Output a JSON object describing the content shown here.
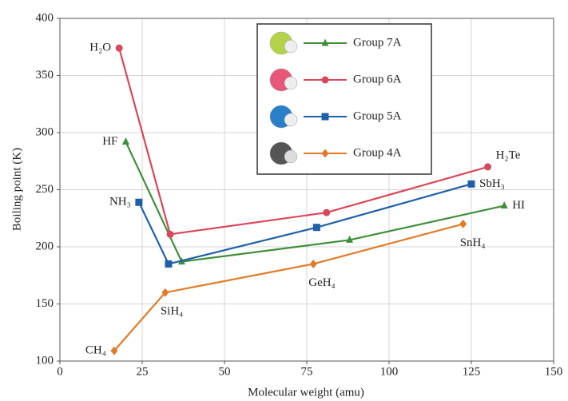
{
  "chart_data": {
    "type": "line",
    "xlabel": "Molecular weight (amu)",
    "ylabel": "Boiling point (K)",
    "xlim": [
      0,
      150
    ],
    "xticks": [
      0,
      25,
      50,
      75,
      100,
      125,
      150
    ],
    "ylim": [
      100,
      400
    ],
    "yticks": [
      100,
      150,
      200,
      250,
      300,
      350,
      400
    ],
    "grid": true,
    "legend": "upper center",
    "series": [
      {
        "name": "Group 7A",
        "color": "#3f8f3a",
        "marker": "triangle",
        "x": [
          20,
          37,
          88,
          135
        ],
        "values": [
          292,
          187,
          206,
          236
        ],
        "point_labels": [
          "HF",
          null,
          null,
          "HI"
        ]
      },
      {
        "name": "Group 6A",
        "color": "#d9475a",
        "marker": "circle",
        "x": [
          18,
          33.5,
          81,
          130
        ],
        "values": [
          374,
          211,
          230,
          270
        ],
        "point_labels": [
          "H₂O",
          null,
          null,
          "H₂Te"
        ]
      },
      {
        "name": "Group 5A",
        "color": "#1f5fa8",
        "marker": "square",
        "x": [
          24,
          33,
          78,
          125
        ],
        "values": [
          239,
          185,
          217,
          255
        ],
        "point_labels": [
          "NH₃",
          null,
          null,
          "SbH₃"
        ]
      },
      {
        "name": "Group 4A",
        "color": "#e07b28",
        "marker": "diamond",
        "x": [
          16.5,
          32,
          77,
          122.5
        ],
        "values": [
          109,
          160,
          185,
          220
        ],
        "point_labels": [
          "CH₄",
          "SiH₄",
          "GeH₄",
          "SnH₄"
        ]
      }
    ]
  }
}
